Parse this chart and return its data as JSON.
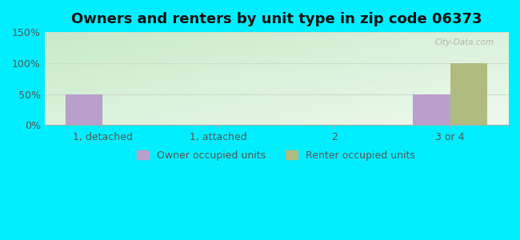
{
  "title": "Owners and renters by unit type in zip code 06373",
  "categories": [
    "1, detached",
    "1, attached",
    "2",
    "3 or 4"
  ],
  "owner_values": [
    50,
    0,
    0,
    50
  ],
  "renter_values": [
    0,
    0,
    0,
    100
  ],
  "owner_color": "#b89fcc",
  "renter_color": "#b0bb80",
  "ylim": [
    0,
    150
  ],
  "yticks": [
    0,
    50,
    100,
    150
  ],
  "ytick_labels": [
    "0%",
    "50%",
    "100%",
    "150%"
  ],
  "background_outer": "#00eeff",
  "watermark": "City-Data.com",
  "legend_owner": "Owner occupied units",
  "legend_renter": "Renter occupied units",
  "bar_width": 0.32,
  "title_fontsize": 13,
  "tick_fontsize": 9,
  "grid_color": "#ccddcc"
}
